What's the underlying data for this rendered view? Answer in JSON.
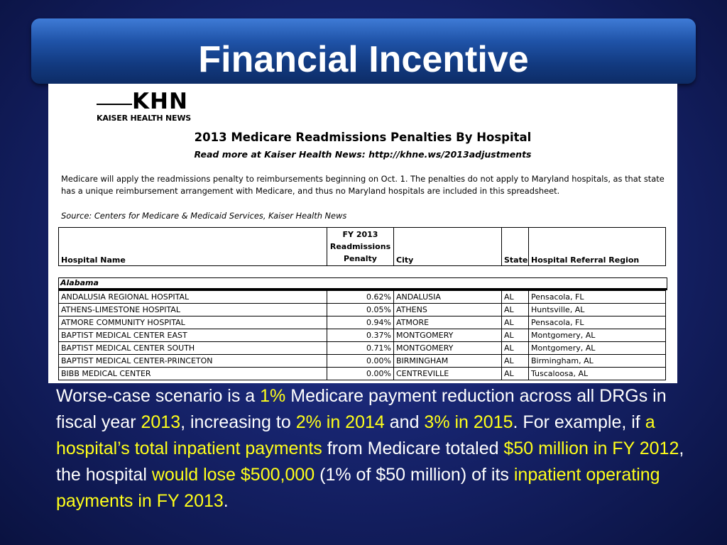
{
  "slide": {
    "title": "Financial Incentive"
  },
  "document": {
    "logo": {
      "letters": "KHN",
      "name": "KAISER HEALTH NEWS"
    },
    "title": "2013 Medicare Readmissions Penalties By Hospital",
    "subtitle": "Read more at Kaiser Health News: http://khne.ws/2013adjustments",
    "paragraph": "Medicare will apply the readmissions penalty to reimbursements beginning on Oct. 1. The penalties do not apply to Maryland hospitals, as that state has a unique reimbursement arrangement with Medicare, and thus no Maryland hospitals are included in this spreadsheet.",
    "source": "Source: Centers for Medicare & Medicaid Services, Kaiser Health News",
    "columns": {
      "hospital": "Hospital Name",
      "penalty_l1": "FY 2013",
      "penalty_l2": "Readmissions",
      "penalty_l3": "Penalty",
      "city": "City",
      "state": "State",
      "region": "Hospital Referral Region"
    },
    "region_label": "Alabama",
    "rows": [
      {
        "hospital": "ANDALUSIA REGIONAL HOSPITAL",
        "penalty": "0.62%",
        "city": "ANDALUSIA",
        "state": "AL",
        "region": "Pensacola, FL"
      },
      {
        "hospital": "ATHENS-LIMESTONE HOSPITAL",
        "penalty": "0.05%",
        "city": "ATHENS",
        "state": "AL",
        "region": "Huntsville, AL"
      },
      {
        "hospital": "ATMORE COMMUNITY HOSPITAL",
        "penalty": "0.94%",
        "city": "ATMORE",
        "state": "AL",
        "region": "Pensacola, FL"
      },
      {
        "hospital": "BAPTIST MEDICAL CENTER EAST",
        "penalty": "0.37%",
        "city": "MONTGOMERY",
        "state": "AL",
        "region": "Montgomery, AL"
      },
      {
        "hospital": "BAPTIST MEDICAL CENTER SOUTH",
        "penalty": "0.71%",
        "city": "MONTGOMERY",
        "state": "AL",
        "region": "Montgomery, AL"
      },
      {
        "hospital": "BAPTIST MEDICAL CENTER-PRINCETON",
        "penalty": "0.00%",
        "city": "BIRMINGHAM",
        "state": "AL",
        "region": "Birmingham, AL"
      },
      {
        "hospital": "BIBB MEDICAL CENTER",
        "penalty": "0.00%",
        "city": "CENTREVILLE",
        "state": "AL",
        "region": "Tuscaloosa, AL"
      }
    ]
  },
  "body": {
    "s1": "Worse-case scenario is a ",
    "h1": "1%",
    "s2": " Medicare payment reduction across all DRGs in fiscal year ",
    "h2": "2013",
    "s3": ", increasing to ",
    "h3": "2% in 2014",
    "s4": " and ",
    "h4": "3% in 2015",
    "s5": ". For example, if ",
    "h5": "a hospital’s total inpatient payments",
    "s6": " from Medicare totaled ",
    "h6": "$50 million in FY 2012",
    "s7": ", the hospital ",
    "h7": "would lose $500,000",
    "s8": " (1% of $50 million) of its ",
    "h8": "inpatient operating payments in FY 2013",
    "s9": "."
  }
}
